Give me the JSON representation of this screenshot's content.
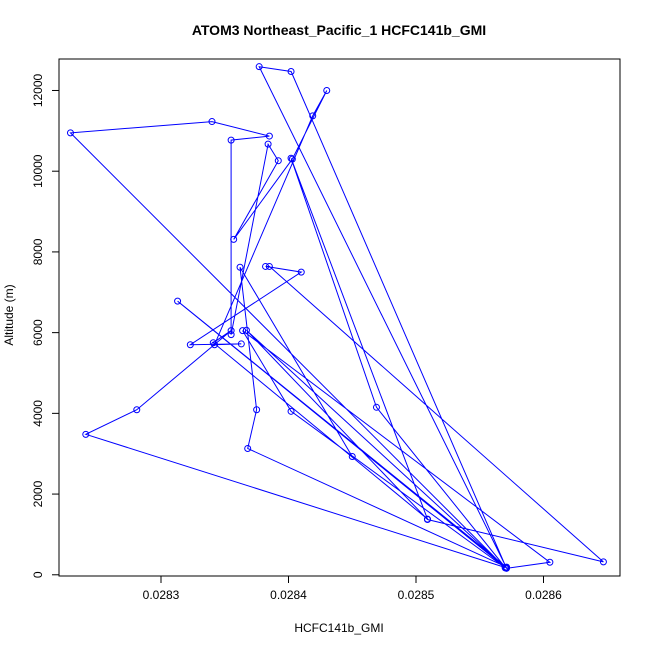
{
  "chart_data": {
    "type": "line",
    "title": "ATOM3 Northeast_Pacific_1 HCFC141b_GMI",
    "xlabel": "HCFC141b_GMI",
    "ylabel": "Altitude (m)",
    "xlim": [
      0.02822,
      0.02866
    ],
    "ylim": [
      -30,
      12780
    ],
    "x_ticks": [
      {
        "value": 0.0283,
        "label": "0.0283"
      },
      {
        "value": 0.0284,
        "label": "0.0284"
      },
      {
        "value": 0.0285,
        "label": "0.0285"
      },
      {
        "value": 0.0286,
        "label": "0.0286"
      }
    ],
    "y_ticks": [
      {
        "value": 0,
        "label": "0"
      },
      {
        "value": 2000,
        "label": "2000"
      },
      {
        "value": 4000,
        "label": "4000"
      },
      {
        "value": 6000,
        "label": "6000"
      },
      {
        "value": 8000,
        "label": "8000"
      },
      {
        "value": 10000,
        "label": "10000"
      },
      {
        "value": 12000,
        "label": "12000"
      }
    ],
    "grid": false,
    "legend": "none",
    "color": "#0000ff",
    "marker": "open-circle",
    "series": [
      {
        "x": [
          0.028571,
          0.028377,
          0.028402,
          0.028571,
          0.028605,
          0.028364,
          0.028402,
          0.02857,
          0.028229,
          0.02834,
          0.028385,
          0.028355,
          0.028355,
          0.028384,
          0.028392,
          0.028357,
          0.028403,
          0.02843,
          0.028419,
          0.028342,
          0.028363,
          0.028323,
          0.02841,
          0.028382,
          0.028385,
          0.028647,
          0.028509,
          0.028367,
          0.02857,
          0.028469,
          0.028402,
          0.028509,
          0.028341,
          0.028355,
          0.028281,
          0.028241,
          0.02857,
          0.028313,
          0.028571,
          0.028368,
          0.028375,
          0.028362,
          0.02845
        ],
        "y": [
          170,
          12590,
          12470,
          160,
          310,
          6050,
          4050,
          170,
          10950,
          11230,
          10870,
          10770,
          5950,
          10670,
          10260,
          8310,
          10300,
          12000,
          11370,
          5700,
          5720,
          5700,
          7500,
          7640,
          7640,
          320,
          1370,
          6060,
          180,
          4150,
          10320,
          1380,
          5750,
          6050,
          4090,
          3480,
          180,
          6780,
          190,
          3130,
          4090,
          7620,
          2930
        ]
      }
    ]
  }
}
